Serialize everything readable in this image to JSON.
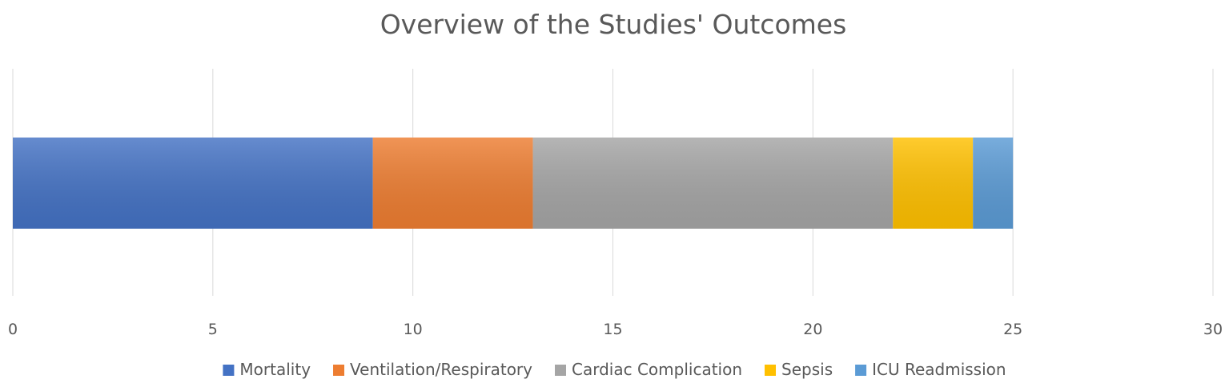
{
  "chart_data": {
    "type": "bar",
    "orientation": "horizontal",
    "stacked": true,
    "title": "Overview of the Studies' Outcomes",
    "xlabel": "",
    "ylabel": "",
    "xlim": [
      0,
      30
    ],
    "xticks": [
      0,
      5,
      10,
      15,
      20,
      25,
      30
    ],
    "grid": true,
    "legend_position": "bottom",
    "series": [
      {
        "name": "Mortality",
        "value": 9,
        "color": "#4472c4"
      },
      {
        "name": "Ventilation/Respiratory",
        "value": 4,
        "color": "#ed7d31"
      },
      {
        "name": "Cardiac Complication",
        "value": 9,
        "color": "#a5a5a5"
      },
      {
        "name": "Sepsis",
        "value": 2,
        "color": "#ffc000"
      },
      {
        "name": "ICU Readmission",
        "value": 1,
        "color": "#5b9bd5"
      }
    ]
  }
}
